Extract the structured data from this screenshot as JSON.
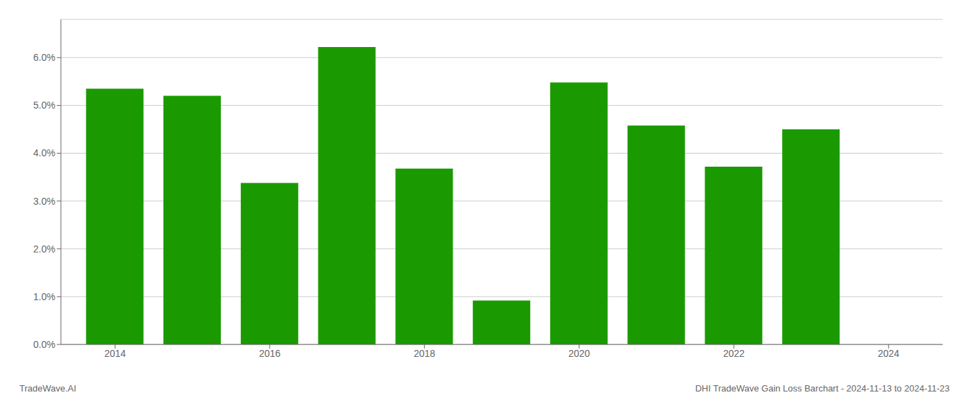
{
  "chart_data": {
    "type": "bar",
    "title": "DHI TradeWave Gain Loss Barchart - 2024-11-13 to 2024-11-23",
    "annotations": [
      "TradeWave.AI"
    ],
    "x": [
      2014,
      2015,
      2016,
      2017,
      2018,
      2019,
      2020,
      2021,
      2022,
      2023
    ],
    "values": [
      0.0535,
      0.052,
      0.0338,
      0.0622,
      0.0368,
      0.0092,
      0.0548,
      0.0458,
      0.0372,
      0.045
    ],
    "color": "#1a9a00",
    "xlim": [
      2013.3,
      2024.7
    ],
    "xticks": [
      2014,
      2016,
      2018,
      2020,
      2022,
      2024
    ],
    "ylim": [
      0,
      0.068
    ],
    "yticks": [
      {
        "value": 0,
        "label": "0.0%"
      },
      {
        "value": 0.01,
        "label": "1.0%"
      },
      {
        "value": 0.02,
        "label": "2.0%"
      },
      {
        "value": 0.03,
        "label": "3.0%"
      },
      {
        "value": 0.04,
        "label": "4.0%"
      },
      {
        "value": 0.05,
        "label": "5.0%"
      },
      {
        "value": 0.06,
        "label": "6.0%"
      }
    ],
    "grid": true
  }
}
